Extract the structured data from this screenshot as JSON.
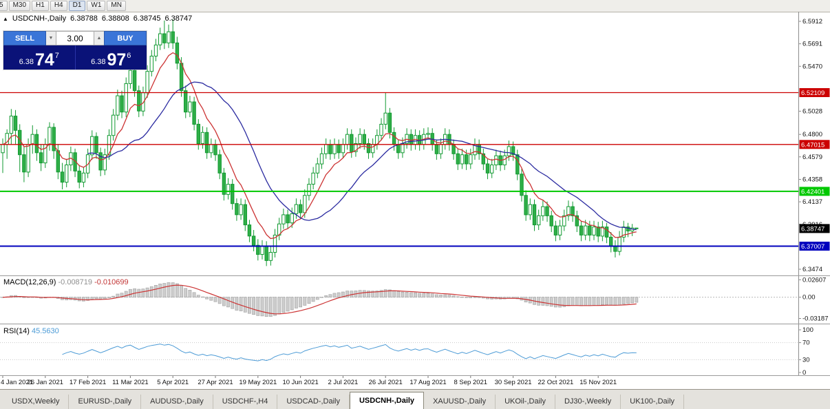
{
  "toolbar": {
    "timeframes": [
      {
        "label": "5",
        "active": false
      },
      {
        "label": "M30",
        "active": false
      },
      {
        "label": "H1",
        "active": false
      },
      {
        "label": "H4",
        "active": false
      },
      {
        "label": "D1",
        "active": true
      },
      {
        "label": "W1",
        "active": false
      },
      {
        "label": "MN",
        "active": false
      }
    ]
  },
  "info_line": {
    "symbol": "USDCNH-,Daily",
    "open": "6.38788",
    "high": "6.38808",
    "low": "6.38745",
    "close": "6.38747"
  },
  "trade_panel": {
    "sell_label": "SELL",
    "buy_label": "BUY",
    "volume": "3.00",
    "bid_prefix": "6.38",
    "bid_big": "74",
    "bid_sup": "7",
    "ask_prefix": "6.38",
    "ask_big": "97",
    "ask_sup": "6"
  },
  "macd_label": {
    "name": "MACD(12,26,9)",
    "v1": "-0.008719",
    "v2": "-0.010699"
  },
  "rsi_label": {
    "name": "RSI(14)",
    "v": "45.5630"
  },
  "price_axis": {
    "ticks": [
      {
        "v": 6.5912,
        "label": "6.5912"
      },
      {
        "v": 6.5691,
        "label": "6.5691"
      },
      {
        "v": 6.547,
        "label": "6.5470"
      },
      {
        "v": 6.5028,
        "label": "6.5028"
      },
      {
        "v": 6.48,
        "label": "6.4800"
      },
      {
        "v": 6.4579,
        "label": "6.4579"
      },
      {
        "v": 6.4358,
        "label": "6.4358"
      },
      {
        "v": 6.4137,
        "label": "6.4137"
      },
      {
        "v": 6.3916,
        "label": "6.3916"
      },
      {
        "v": 6.3474,
        "label": "6.3474"
      }
    ]
  },
  "hlines": [
    {
      "v": 6.52109,
      "label": "6.52109",
      "color": "#CC0000",
      "width": 1.3
    },
    {
      "v": 6.47015,
      "label": "6.47015",
      "color": "#CC0000",
      "width": 1.3
    },
    {
      "v": 6.42401,
      "label": "6.42401",
      "color": "#00C800",
      "width": 2
    },
    {
      "v": 6.37007,
      "label": "6.37007",
      "color": "#0000BE",
      "width": 2
    }
  ],
  "current_price": {
    "v": 6.38747,
    "label": "6.38747",
    "color": "#000000"
  },
  "colors": {
    "candle_up": "#FFFFFF",
    "candle_down": "#2FAE47",
    "candle_border": "#119A31",
    "ma_fast": "#CC3333",
    "ma_slow": "#2A2AA0",
    "macd_histogram": "#CDCDCD",
    "macd_histogram_border": "#A0A0A0",
    "macd_signal": "#CC3333",
    "rsi_line": "#4C9BD6",
    "axis_text": "#111111",
    "frame": "#8C8C8C"
  },
  "tabs": [
    {
      "label": "USDX,Weekly",
      "active": false
    },
    {
      "label": "EURUSD-,Daily",
      "active": false
    },
    {
      "label": "AUDUSD-,Daily",
      "active": false
    },
    {
      "label": "USDCHF-,H4",
      "active": false
    },
    {
      "label": "USDCAD-,Daily",
      "active": false
    },
    {
      "label": "USDCNH-,Daily",
      "active": true
    },
    {
      "label": "XAUUSD-,Daily",
      "active": false
    },
    {
      "label": "UKOil-,Daily",
      "active": false
    },
    {
      "label": "DJ30-,Weekly",
      "active": false
    },
    {
      "label": "UK100-,Daily",
      "active": false
    }
  ],
  "chart_data": {
    "type": "candlestick",
    "title": "USDCNH-,Daily",
    "ylim": [
      6.342,
      6.6
    ],
    "x_labels": [
      {
        "i": 0,
        "label": "4 Jan 2021"
      },
      {
        "i": 10,
        "label": "26 Jan 2021"
      },
      {
        "i": 20,
        "label": "17 Feb 2021"
      },
      {
        "i": 30,
        "label": "11 Mar 2021"
      },
      {
        "i": 40,
        "label": "5 Apr 2021"
      },
      {
        "i": 50,
        "label": "27 Apr 2021"
      },
      {
        "i": 60,
        "label": "19 May 2021"
      },
      {
        "i": 70,
        "label": "10 Jun 2021"
      },
      {
        "i": 80,
        "label": "2 Jul 2021"
      },
      {
        "i": 90,
        "label": "26 Jul 2021"
      },
      {
        "i": 100,
        "label": "17 Aug 2021"
      },
      {
        "i": 110,
        "label": "8 Sep 2021"
      },
      {
        "i": 120,
        "label": "30 Sep 2021"
      },
      {
        "i": 130,
        "label": "22 Oct 2021"
      },
      {
        "i": 140,
        "label": "15 Nov 2021"
      }
    ],
    "overlays": [
      {
        "name": "ma-fast",
        "type": "ema",
        "period": 8,
        "color": "#CC3333"
      },
      {
        "name": "ma-slow",
        "type": "sma",
        "period": 21,
        "color": "#2A2AA0"
      }
    ],
    "ohlc": [
      [
        6.462,
        6.476,
        6.442,
        6.47
      ],
      [
        6.47,
        6.485,
        6.456,
        6.481
      ],
      [
        6.481,
        6.505,
        6.47,
        6.498
      ],
      [
        6.498,
        6.504,
        6.47,
        6.484
      ],
      [
        6.484,
        6.49,
        6.443,
        6.46
      ],
      [
        6.46,
        6.468,
        6.433,
        6.443
      ],
      [
        6.443,
        6.476,
        6.438,
        6.47
      ],
      [
        6.47,
        6.489,
        6.461,
        6.48
      ],
      [
        6.48,
        6.485,
        6.454,
        6.462
      ],
      [
        6.462,
        6.47,
        6.444,
        6.452
      ],
      [
        6.452,
        6.476,
        6.447,
        6.47
      ],
      [
        6.47,
        6.492,
        6.464,
        6.487
      ],
      [
        6.487,
        6.491,
        6.456,
        6.464
      ],
      [
        6.464,
        6.47,
        6.436,
        6.443
      ],
      [
        6.443,
        6.452,
        6.426,
        6.433
      ],
      [
        6.433,
        6.456,
        6.428,
        6.45
      ],
      [
        6.45,
        6.468,
        6.444,
        6.462
      ],
      [
        6.462,
        6.466,
        6.438,
        6.444
      ],
      [
        6.444,
        6.45,
        6.427,
        6.433
      ],
      [
        6.433,
        6.448,
        6.428,
        6.442
      ],
      [
        6.442,
        6.466,
        6.437,
        6.46
      ],
      [
        6.46,
        6.484,
        6.455,
        6.478
      ],
      [
        6.478,
        6.482,
        6.456,
        6.462
      ],
      [
        6.462,
        6.467,
        6.439,
        6.445
      ],
      [
        6.445,
        6.466,
        6.44,
        6.46
      ],
      [
        6.46,
        6.485,
        6.455,
        6.479
      ],
      [
        6.479,
        6.505,
        6.474,
        6.499
      ],
      [
        6.499,
        6.524,
        6.494,
        6.518
      ],
      [
        6.518,
        6.523,
        6.496,
        6.502
      ],
      [
        6.502,
        6.536,
        6.497,
        6.53
      ],
      [
        6.53,
        6.57,
        6.525,
        6.543
      ],
      [
        6.543,
        6.548,
        6.517,
        6.523
      ],
      [
        6.523,
        6.528,
        6.497,
        6.503
      ],
      [
        6.503,
        6.527,
        6.498,
        6.521
      ],
      [
        6.521,
        6.548,
        6.516,
        6.542
      ],
      [
        6.542,
        6.563,
        6.537,
        6.557
      ],
      [
        6.557,
        6.574,
        6.552,
        6.568
      ],
      [
        6.568,
        6.585,
        6.563,
        6.579
      ],
      [
        6.579,
        6.592,
        6.564,
        6.57
      ],
      [
        6.57,
        6.588,
        6.565,
        6.581
      ],
      [
        6.581,
        6.593,
        6.564,
        6.57
      ],
      [
        6.57,
        6.576,
        6.544,
        6.55
      ],
      [
        6.55,
        6.556,
        6.517,
        6.523
      ],
      [
        6.523,
        6.528,
        6.496,
        6.502
      ],
      [
        6.502,
        6.518,
        6.497,
        6.512
      ],
      [
        6.512,
        6.517,
        6.484,
        6.49
      ],
      [
        6.49,
        6.495,
        6.465,
        6.471
      ],
      [
        6.471,
        6.488,
        6.466,
        6.482
      ],
      [
        6.482,
        6.487,
        6.456,
        6.462
      ],
      [
        6.462,
        6.476,
        6.457,
        6.47
      ],
      [
        6.47,
        6.475,
        6.454,
        6.46
      ],
      [
        6.46,
        6.465,
        6.436,
        6.442
      ],
      [
        6.442,
        6.447,
        6.415,
        6.421
      ],
      [
        6.421,
        6.437,
        6.416,
        6.431
      ],
      [
        6.431,
        6.436,
        6.406,
        6.412
      ],
      [
        6.412,
        6.417,
        6.395,
        6.401
      ],
      [
        6.401,
        6.417,
        6.396,
        6.411
      ],
      [
        6.411,
        6.416,
        6.385,
        6.391
      ],
      [
        6.391,
        6.396,
        6.374,
        6.38
      ],
      [
        6.38,
        6.386,
        6.365,
        6.371
      ],
      [
        6.371,
        6.377,
        6.356,
        6.362
      ],
      [
        6.362,
        6.376,
        6.357,
        6.37
      ],
      [
        6.37,
        6.375,
        6.3505,
        6.356
      ],
      [
        6.356,
        6.37,
        6.351,
        6.364
      ],
      [
        6.364,
        6.387,
        6.359,
        6.381
      ],
      [
        6.381,
        6.398,
        6.376,
        6.392
      ],
      [
        6.392,
        6.407,
        6.387,
        6.401
      ],
      [
        6.401,
        6.406,
        6.387,
        6.393
      ],
      [
        6.393,
        6.408,
        6.388,
        6.402
      ],
      [
        6.402,
        6.417,
        6.397,
        6.411
      ],
      [
        6.411,
        6.416,
        6.397,
        6.403
      ],
      [
        6.403,
        6.426,
        6.398,
        6.42
      ],
      [
        6.42,
        6.437,
        6.415,
        6.431
      ],
      [
        6.431,
        6.448,
        6.426,
        6.442
      ],
      [
        6.442,
        6.457,
        6.437,
        6.451
      ],
      [
        6.451,
        6.467,
        6.446,
        6.461
      ],
      [
        6.461,
        6.476,
        6.456,
        6.47
      ],
      [
        6.47,
        6.475,
        6.455,
        6.461
      ],
      [
        6.461,
        6.476,
        6.456,
        6.47
      ],
      [
        6.47,
        6.475,
        6.456,
        6.462
      ],
      [
        6.462,
        6.476,
        6.457,
        6.47
      ],
      [
        6.47,
        6.486,
        6.465,
        6.48
      ],
      [
        6.48,
        6.485,
        6.457,
        6.463
      ],
      [
        6.463,
        6.477,
        6.458,
        6.471
      ],
      [
        6.471,
        6.486,
        6.466,
        6.48
      ],
      [
        6.48,
        6.485,
        6.465,
        6.471
      ],
      [
        6.471,
        6.476,
        6.456,
        6.462
      ],
      [
        6.462,
        6.476,
        6.457,
        6.47
      ],
      [
        6.47,
        6.485,
        6.465,
        6.479
      ],
      [
        6.479,
        6.496,
        6.474,
        6.49
      ],
      [
        6.49,
        6.521,
        6.485,
        6.501
      ],
      [
        6.501,
        6.506,
        6.476,
        6.482
      ],
      [
        6.482,
        6.487,
        6.464,
        6.47
      ],
      [
        6.47,
        6.475,
        6.456,
        6.462
      ],
      [
        6.462,
        6.477,
        6.457,
        6.471
      ],
      [
        6.471,
        6.486,
        6.466,
        6.48
      ],
      [
        6.48,
        6.485,
        6.464,
        6.47
      ],
      [
        6.47,
        6.485,
        6.465,
        6.479
      ],
      [
        6.479,
        6.484,
        6.464,
        6.47
      ],
      [
        6.47,
        6.486,
        6.465,
        6.48
      ],
      [
        6.48,
        6.487,
        6.475,
        6.481
      ],
      [
        6.481,
        6.486,
        6.464,
        6.47
      ],
      [
        6.47,
        6.475,
        6.455,
        6.461
      ],
      [
        6.461,
        6.476,
        6.456,
        6.47
      ],
      [
        6.47,
        6.486,
        6.465,
        6.48
      ],
      [
        6.48,
        6.485,
        6.464,
        6.47
      ],
      [
        6.47,
        6.475,
        6.455,
        6.461
      ],
      [
        6.461,
        6.466,
        6.445,
        6.451
      ],
      [
        6.451,
        6.466,
        6.446,
        6.46
      ],
      [
        6.46,
        6.465,
        6.445,
        6.451
      ],
      [
        6.451,
        6.466,
        6.446,
        6.46
      ],
      [
        6.46,
        6.476,
        6.455,
        6.47
      ],
      [
        6.47,
        6.475,
        6.455,
        6.461
      ],
      [
        6.461,
        6.466,
        6.445,
        6.451
      ],
      [
        6.451,
        6.456,
        6.436,
        6.442
      ],
      [
        6.442,
        6.456,
        6.437,
        6.45
      ],
      [
        6.45,
        6.465,
        6.445,
        6.459
      ],
      [
        6.459,
        6.464,
        6.444,
        6.45
      ],
      [
        6.45,
        6.465,
        6.445,
        6.459
      ],
      [
        6.459,
        6.474,
        6.454,
        6.468
      ],
      [
        6.468,
        6.473,
        6.454,
        6.46
      ],
      [
        6.46,
        6.465,
        6.435,
        6.441
      ],
      [
        6.441,
        6.446,
        6.414,
        6.42
      ],
      [
        6.42,
        6.425,
        6.395,
        6.401
      ],
      [
        6.401,
        6.417,
        6.396,
        6.411
      ],
      [
        6.411,
        6.416,
        6.385,
        6.391
      ],
      [
        6.391,
        6.406,
        6.386,
        6.4
      ],
      [
        6.4,
        6.415,
        6.395,
        6.409
      ],
      [
        6.409,
        6.414,
        6.394,
        6.4
      ],
      [
        6.4,
        6.405,
        6.384,
        6.39
      ],
      [
        6.39,
        6.395,
        6.375,
        6.381
      ],
      [
        6.381,
        6.396,
        6.376,
        6.39
      ],
      [
        6.39,
        6.406,
        6.385,
        6.4
      ],
      [
        6.4,
        6.415,
        6.395,
        6.409
      ],
      [
        6.409,
        6.414,
        6.394,
        6.4
      ],
      [
        6.4,
        6.405,
        6.384,
        6.39
      ],
      [
        6.39,
        6.395,
        6.375,
        6.381
      ],
      [
        6.381,
        6.396,
        6.376,
        6.39
      ],
      [
        6.39,
        6.395,
        6.375,
        6.381
      ],
      [
        6.381,
        6.395,
        6.376,
        6.389
      ],
      [
        6.389,
        6.394,
        6.374,
        6.38
      ],
      [
        6.38,
        6.395,
        6.375,
        6.389
      ],
      [
        6.389,
        6.393,
        6.373,
        6.379
      ],
      [
        6.379,
        6.384,
        6.364,
        6.37
      ],
      [
        6.37,
        6.376,
        6.359,
        6.365
      ],
      [
        6.365,
        6.385,
        6.361,
        6.379
      ],
      [
        6.379,
        6.395,
        6.374,
        6.389
      ],
      [
        6.389,
        6.393,
        6.379,
        6.385
      ],
      [
        6.385,
        6.392,
        6.38,
        6.388
      ],
      [
        6.3879,
        6.3881,
        6.3875,
        6.3875
      ]
    ],
    "indicators": [
      {
        "name": "MACD",
        "params": "12,26,9",
        "ylim": [
          -0.0375,
          0.0305
        ],
        "ticks": [
          {
            "v": 0.02607,
            "label": "0.02607"
          },
          {
            "v": 0,
            "label": "0.00"
          },
          {
            "v": -0.03187,
            "label": "-0.03187"
          }
        ]
      },
      {
        "name": "RSI",
        "params": "14",
        "ylim": [
          0,
          100
        ],
        "levels": [
          70,
          30
        ],
        "ticks": [
          {
            "v": 100,
            "label": "100"
          },
          {
            "v": 70,
            "label": "70"
          },
          {
            "v": 30,
            "label": "30"
          },
          {
            "v": 0,
            "label": "0"
          }
        ]
      }
    ]
  }
}
